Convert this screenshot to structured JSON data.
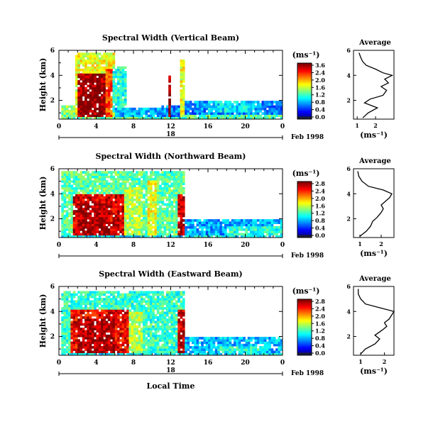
{
  "chart_data": [
    {
      "type": "heatmap",
      "title": "Spectral Width (Vertical Beam)",
      "ylabel": "Height (km)",
      "y_ticks": [
        "2",
        "4",
        "6"
      ],
      "x_ticks": [
        "0",
        "4",
        "8",
        "12",
        "16",
        "20",
        "0"
      ],
      "xlim": [
        0,
        24
      ],
      "ylim": [
        0.5,
        6
      ],
      "date_label": "18",
      "date_suffix": "Feb 1998",
      "colorbar": {
        "unit": "(ms⁻¹)",
        "ticks": [
          "3.6",
          "2.4",
          "2.0",
          "1.6",
          "1.2",
          "0.8",
          "0.4",
          "0.0"
        ]
      },
      "blocks": [
        {
          "x0": 0.2,
          "x1": 24.0,
          "y0": 0.55,
          "y1": 1.0,
          "level": 0.45
        },
        {
          "x0": 0.2,
          "x1": 6.0,
          "y0": 0.8,
          "y1": 1.6,
          "level": 0.5
        },
        {
          "x0": 1.8,
          "x1": 6.0,
          "y0": 0.6,
          "y1": 5.9,
          "level": 0.6
        },
        {
          "x0": 2.0,
          "x1": 5.0,
          "y0": 0.6,
          "y1": 4.2,
          "level": 0.96
        },
        {
          "x0": 5.0,
          "x1": 5.8,
          "y0": 0.6,
          "y1": 4.6,
          "level": 0.8
        },
        {
          "x0": 5.8,
          "x1": 7.2,
          "y0": 1.0,
          "y1": 4.8,
          "level": 0.4
        },
        {
          "x0": 6.0,
          "x1": 11.0,
          "y0": 0.6,
          "y1": 1.5,
          "level": 0.3
        },
        {
          "x0": 11.0,
          "x1": 13.0,
          "y0": 0.6,
          "y1": 1.6,
          "level": 0.25
        },
        {
          "x0": 11.7,
          "x1": 12.0,
          "y0": 0.6,
          "y1": 4.0,
          "level": 0.98
        },
        {
          "x0": 13.0,
          "x1": 13.4,
          "y0": 0.6,
          "y1": 5.3,
          "level": 0.6
        },
        {
          "x0": 13.4,
          "x1": 24.0,
          "y0": 0.8,
          "y1": 2.0,
          "level": 0.25
        },
        {
          "x0": 16.0,
          "x1": 21.0,
          "y0": 1.0,
          "y1": 1.9,
          "level": 0.35
        },
        {
          "x0": 3.0,
          "x1": 4.4,
          "y0": 1.6,
          "y1": 3.0,
          "level": 0.99
        }
      ],
      "average_title": "Average",
      "average_xlabel": "(ms⁻¹)",
      "average_x_ticks": [
        "1",
        "2"
      ],
      "average_xlim": [
        0.8,
        3.0
      ],
      "average_profile": {
        "height": [
          0.6,
          1.0,
          1.4,
          1.8,
          2.1,
          2.4,
          2.8,
          3.1,
          3.4,
          3.7,
          4.0,
          4.2,
          4.5,
          4.8,
          5.1,
          5.4,
          5.8
        ],
        "width": [
          1.3,
          1.6,
          2.1,
          1.4,
          1.7,
          2.4,
          2.6,
          2.3,
          2.7,
          2.5,
          2.9,
          2.4,
          2.0,
          1.5,
          1.3,
          1.2,
          1.1
        ]
      }
    },
    {
      "type": "heatmap",
      "title": "Spectral Width (Northward Beam)",
      "ylabel": "Height (km)",
      "y_ticks": [
        "2",
        "4",
        "6"
      ],
      "x_ticks": [
        "0",
        "4",
        "8",
        "12",
        "16",
        "20",
        "0"
      ],
      "xlim": [
        0,
        24
      ],
      "ylim": [
        0.5,
        6
      ],
      "date_label": "",
      "date_suffix": "Feb 1998",
      "colorbar": {
        "unit": "(ms⁻¹)",
        "ticks": [
          "2.8",
          "2.4",
          "2.0",
          "1.6",
          "1.2",
          "0.8",
          "0.4",
          "0.0"
        ]
      },
      "blocks": [
        {
          "x0": 0.2,
          "x1": 24.0,
          "y0": 0.55,
          "y1": 1.4,
          "level": 0.35
        },
        {
          "x0": 0.2,
          "x1": 13.5,
          "y0": 0.6,
          "y1": 5.9,
          "level": 0.45
        },
        {
          "x0": 1.5,
          "x1": 7.0,
          "y0": 0.6,
          "y1": 4.0,
          "level": 0.9
        },
        {
          "x0": 2.0,
          "x1": 5.5,
          "y0": 0.6,
          "y1": 3.2,
          "level": 0.95
        },
        {
          "x0": 7.0,
          "x1": 9.0,
          "y0": 0.6,
          "y1": 4.5,
          "level": 0.55
        },
        {
          "x0": 9.5,
          "x1": 10.5,
          "y0": 0.6,
          "y1": 5.0,
          "level": 0.6
        },
        {
          "x0": 12.7,
          "x1": 13.5,
          "y0": 0.6,
          "y1": 4.0,
          "level": 0.92
        },
        {
          "x0": 13.5,
          "x1": 24.0,
          "y0": 0.7,
          "y1": 2.0,
          "level": 0.28
        },
        {
          "x0": 18.0,
          "x1": 24.0,
          "y0": 0.6,
          "y1": 1.4,
          "level": 0.4
        }
      ],
      "average_title": "Average",
      "average_xlabel": "(ms⁻¹)",
      "average_x_ticks": [
        "1",
        "2"
      ],
      "average_xlim": [
        0.7,
        2.6
      ],
      "average_profile": {
        "height": [
          0.6,
          1.0,
          1.4,
          1.8,
          2.1,
          2.5,
          2.8,
          3.1,
          3.4,
          3.7,
          4.0,
          4.3,
          4.6,
          5.0,
          5.4,
          5.8
        ],
        "width": [
          1.0,
          1.3,
          1.5,
          1.6,
          1.8,
          2.0,
          2.1,
          2.0,
          2.2,
          2.4,
          2.5,
          2.1,
          1.4,
          1.1,
          0.95,
          0.9
        ]
      }
    },
    {
      "type": "heatmap",
      "title": "Spectral Width (Eastward Beam)",
      "ylabel": "Height (km)",
      "y_ticks": [
        "2",
        "4",
        "6"
      ],
      "x_ticks": [
        "0",
        "4",
        "8",
        "12",
        "16",
        "20",
        "0"
      ],
      "xlim": [
        0,
        24
      ],
      "ylim": [
        0.5,
        6
      ],
      "date_label": "18",
      "date_suffix": "Feb 1998",
      "xlabel": "Local Time",
      "colorbar": {
        "unit": "(ms⁻¹)",
        "ticks": [
          "2.8",
          "2.4",
          "2.0",
          "1.6",
          "1.2",
          "0.8",
          "0.4",
          "0.0"
        ]
      },
      "blocks": [
        {
          "x0": 0.2,
          "x1": 24.0,
          "y0": 0.55,
          "y1": 1.6,
          "level": 0.35
        },
        {
          "x0": 0.3,
          "x1": 13.5,
          "y0": 0.6,
          "y1": 5.7,
          "level": 0.42
        },
        {
          "x0": 1.3,
          "x1": 7.5,
          "y0": 0.6,
          "y1": 4.2,
          "level": 0.88
        },
        {
          "x0": 2.0,
          "x1": 6.0,
          "y0": 0.7,
          "y1": 3.5,
          "level": 0.95
        },
        {
          "x0": 7.5,
          "x1": 9.0,
          "y0": 0.6,
          "y1": 4.0,
          "level": 0.55
        },
        {
          "x0": 12.8,
          "x1": 13.5,
          "y0": 0.6,
          "y1": 4.2,
          "level": 0.92
        },
        {
          "x0": 13.5,
          "x1": 24.0,
          "y0": 0.7,
          "y1": 1.9,
          "level": 0.3
        },
        {
          "x0": 17.0,
          "x1": 22.0,
          "y0": 0.6,
          "y1": 1.3,
          "level": 0.4
        }
      ],
      "average_title": "Average",
      "average_xlabel": "(ms⁻¹)",
      "average_x_ticks": [
        "1",
        "2"
      ],
      "average_xlim": [
        0.7,
        2.4
      ],
      "average_profile": {
        "height": [
          0.6,
          1.0,
          1.4,
          1.8,
          2.1,
          2.5,
          2.8,
          3.1,
          3.4,
          3.7,
          4.0,
          4.3,
          4.6,
          5.0,
          5.4,
          5.8
        ],
        "width": [
          1.0,
          1.2,
          1.6,
          1.8,
          1.6,
          1.9,
          2.1,
          2.0,
          2.2,
          2.3,
          2.4,
          1.8,
          1.2,
          1.0,
          0.9,
          0.9
        ]
      }
    }
  ]
}
